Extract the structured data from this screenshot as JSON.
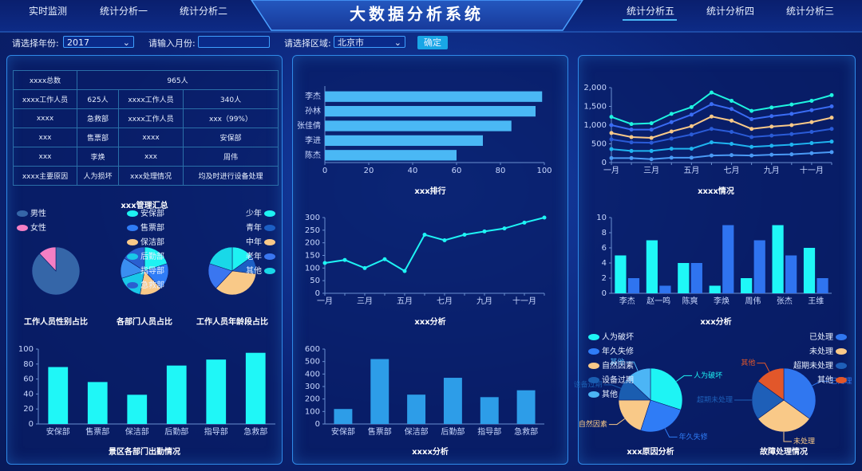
{
  "nav": {
    "left": [
      "实时监测",
      "统计分析一",
      "统计分析二"
    ],
    "title": "大数据分析系统",
    "right": [
      "统计分析五",
      "统计分析四",
      "统计分析三"
    ]
  },
  "filters": {
    "year_label": "请选择年份:",
    "year": "2017",
    "month_label": "请输入月份:",
    "region_label": "请选择区域:",
    "region": "北京市",
    "button": "确定"
  },
  "table": {
    "rows": [
      [
        "xxxx总数",
        "965人"
      ],
      [
        "xxxx工作人员",
        "625人",
        "xxxx工作人员",
        "340人"
      ],
      [
        "xxxx",
        "急救部",
        "xxxx工作人员",
        "xxx（99%）"
      ],
      [
        "xxx",
        "售票部",
        "xxxx",
        "安保部"
      ],
      [
        "xxx",
        "李焕",
        "xxx",
        "周伟"
      ],
      [
        "xxxx主要原因",
        "人为损坏",
        "xxx处理情况",
        "均及时进行设备处理"
      ]
    ]
  },
  "chart_data": [
    {
      "type": "pie",
      "title": "工作人员性别占比",
      "categories": [
        "男性",
        "女性"
      ],
      "values": [
        88,
        12
      ],
      "colors": [
        "#3566a8",
        "#f47fc4"
      ],
      "legend": "top-left"
    },
    {
      "type": "pie",
      "title": "各部门人员占比",
      "subtitle": "xxx管理汇总",
      "categories": [
        "安保部",
        "售票部",
        "保洁部",
        "后勤部",
        "指导部",
        "急救部"
      ],
      "values": [
        20,
        18,
        15,
        17,
        14,
        16
      ],
      "colors": [
        "#1ef2f2",
        "#2f7cf6",
        "#f9c988",
        "#19c8e8",
        "#3a8ef0",
        "#2a5fd0"
      ],
      "legend": "top-left"
    },
    {
      "type": "pie",
      "title": "工作人员年龄段占比",
      "categories": [
        "少年",
        "青年",
        "中年",
        "老年",
        "其他"
      ],
      "values": [
        15,
        12,
        35,
        18,
        20
      ],
      "colors": [
        "#1ef2f2",
        "#1c5fc4",
        "#f9c988",
        "#3a76f0",
        "#19d8e8"
      ],
      "legend": "top-right"
    },
    {
      "type": "bar",
      "title": "景区各部门出勤情况",
      "categories": [
        "安保部",
        "售票部",
        "保洁部",
        "后勤部",
        "指导部",
        "急救部"
      ],
      "values": [
        76,
        56,
        39,
        78,
        86,
        95
      ],
      "color": "#1ff7f7",
      "ylim": [
        0,
        100
      ],
      "yticks": [
        0,
        20,
        40,
        60,
        80,
        100
      ],
      "grid": false
    },
    {
      "type": "hbar",
      "title": "xxx排行",
      "categories": [
        "李杰",
        "孙林",
        "张佳倩",
        "李进",
        "陈杰"
      ],
      "values": [
        99,
        96,
        85,
        72,
        60
      ],
      "color": "#4ab8f5",
      "xlim": [
        0,
        100
      ],
      "xticks": [
        0,
        20,
        40,
        60,
        80,
        100
      ],
      "grid": false
    },
    {
      "type": "line",
      "title": "xxx分析",
      "categories": [
        "一月",
        null,
        "三月",
        null,
        "五月",
        null,
        "七月",
        null,
        "九月",
        null,
        "十一月",
        null
      ],
      "values": [
        120,
        132,
        100,
        135,
        88,
        232,
        210,
        232,
        245,
        257,
        280,
        300
      ],
      "color": "#1ef4f4",
      "ylim": [
        0,
        300
      ],
      "yticks": [
        0,
        50,
        100,
        150,
        200,
        250,
        300
      ],
      "grid": false
    },
    {
      "type": "bar",
      "title": "xxxx分析",
      "categories": [
        "安保部",
        "售票部",
        "保洁部",
        "后勤部",
        "指导部",
        "急救部"
      ],
      "values": [
        120,
        520,
        235,
        370,
        215,
        270
      ],
      "color": "#2d9de8",
      "ylim": [
        0,
        600
      ],
      "yticks": [
        0,
        100,
        200,
        300,
        400,
        500,
        600
      ],
      "grid": false
    },
    {
      "type": "line",
      "title": "xxxx情况",
      "categories": [
        "一月",
        null,
        "三月",
        null,
        "五月",
        null,
        "七月",
        null,
        "九月",
        null,
        "十一月",
        null
      ],
      "series": [
        {
          "color": "#1ef4e0",
          "values": [
            1220,
            1030,
            1050,
            1300,
            1480,
            1870,
            1650,
            1380,
            1470,
            1550,
            1650,
            1800
          ]
        },
        {
          "color": "#3a6cf4",
          "values": [
            1000,
            880,
            880,
            1080,
            1280,
            1560,
            1430,
            1160,
            1240,
            1300,
            1400,
            1500
          ]
        },
        {
          "color": "#f9c988",
          "values": [
            790,
            680,
            660,
            830,
            970,
            1230,
            1120,
            900,
            960,
            1000,
            1080,
            1200
          ]
        },
        {
          "color": "#2a5bd7",
          "values": [
            620,
            540,
            530,
            640,
            750,
            900,
            820,
            680,
            720,
            760,
            820,
            900
          ]
        },
        {
          "color": "#1fb4f0",
          "values": [
            360,
            310,
            310,
            370,
            370,
            540,
            500,
            420,
            450,
            480,
            520,
            560
          ]
        },
        {
          "color": "#4a9af5",
          "values": [
            120,
            120,
            90,
            130,
            130,
            190,
            200,
            190,
            210,
            220,
            250,
            280
          ]
        }
      ],
      "ylim": [
        0,
        2000
      ],
      "yticks": [
        0,
        500,
        {
          "value": 1000,
          "label": "1,000"
        },
        {
          "value": 1500,
          "label": "1,500"
        },
        {
          "value": 2000,
          "label": "2,000"
        }
      ],
      "grid": false
    },
    {
      "type": "bar",
      "title": "xxx分析",
      "categories": [
        "李杰",
        "赵一鸣",
        "陈爽",
        "李焕",
        "周伟",
        "张杰",
        "王维"
      ],
      "series": [
        {
          "color": "#1ff7f7",
          "values": [
            5,
            7,
            4,
            1,
            2,
            9,
            6
          ]
        },
        {
          "color": "#2f74f0",
          "values": [
            2,
            1,
            4,
            9,
            7,
            5,
            2
          ]
        }
      ],
      "ylim": [
        0,
        10
      ],
      "yticks": [
        0,
        2,
        4,
        6,
        8,
        10
      ],
      "grid": false
    },
    {
      "type": "pie",
      "title": "xxx原因分析",
      "categories": [
        "人为破坏",
        "年久失修",
        "自然因素",
        "设备过期",
        "其他"
      ],
      "values": [
        30,
        25,
        20,
        12,
        13
      ],
      "colors": [
        "#1ef4f4",
        "#2f7cf6",
        "#f9c988",
        "#1a5db0",
        "#4cb5f5"
      ],
      "legend": "left",
      "slice_labels": true
    },
    {
      "type": "pie",
      "title": "故障处理情况",
      "categories": [
        "已处理",
        "未处理",
        "超期未处理",
        "其他"
      ],
      "values": [
        35,
        30,
        20,
        15
      ],
      "colors": [
        "#3077f0",
        "#f9c988",
        "#1e5fb8",
        "#e2572a"
      ],
      "legend": "right",
      "slice_labels": true
    }
  ]
}
